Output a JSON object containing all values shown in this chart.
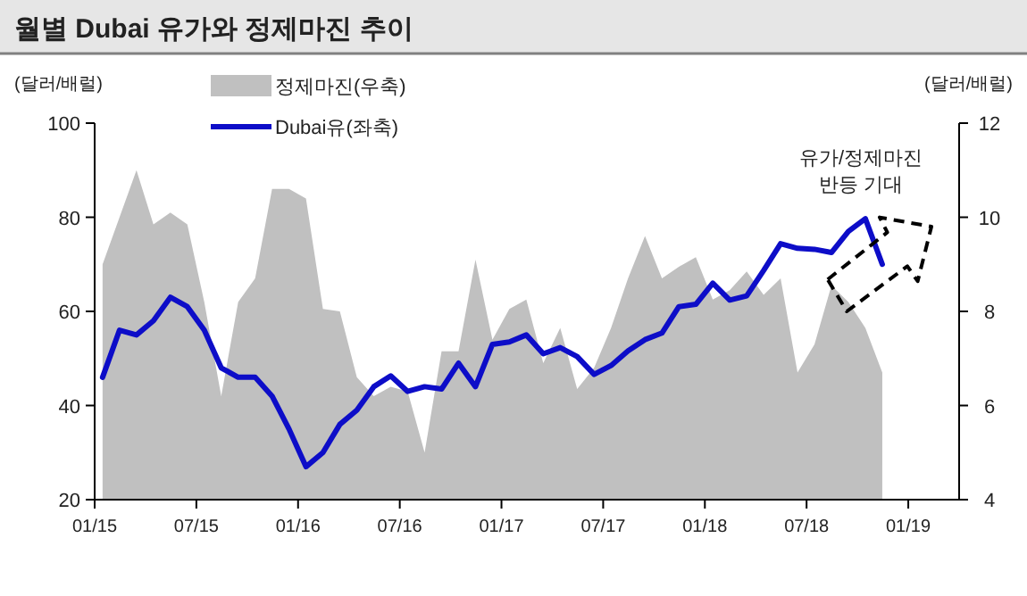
{
  "chart_data": {
    "type": "line",
    "title": "월별 Dubai 유가와 정제마진 추이",
    "ylabel": "(달러/배럴)",
    "y2label": "(달러/배럴)",
    "x": [
      "2015-01-15",
      "2015-02-15",
      "2015-03-15",
      "2015-04-15",
      "2015-05-15",
      "2015-06-15",
      "2015-07-15",
      "2015-08-15",
      "2015-09-15",
      "2015-10-15",
      "2015-11-15",
      "2015-12-15",
      "2016-01-15",
      "2016-02-15",
      "2016-03-15",
      "2016-04-15",
      "2016-05-15",
      "2016-06-15",
      "2016-07-15",
      "2016-08-15",
      "2016-09-15",
      "2016-10-15",
      "2016-11-15",
      "2016-12-15",
      "2017-01-15",
      "2017-02-15",
      "2017-03-15",
      "2017-04-15",
      "2017-05-15",
      "2017-06-15",
      "2017-07-15",
      "2017-08-15",
      "2017-09-15",
      "2017-10-15",
      "2017-11-15",
      "2017-12-15",
      "2018-01-15",
      "2018-02-15",
      "2018-03-15",
      "2018-04-15",
      "2018-05-15",
      "2018-06-15",
      "2018-07-15",
      "2018-08-15",
      "2018-09-15",
      "2018-10-15",
      "2018-11-15"
    ],
    "series": [
      {
        "name": "정제마진(우축)",
        "type": "area",
        "axis": "y2",
        "color": "#c0c0c0",
        "values": [
          9.0,
          10.0,
          11.0,
          9.85,
          10.1,
          9.85,
          8.2,
          6.2,
          8.2,
          8.7,
          10.6,
          10.6,
          10.4,
          8.05,
          8.0,
          6.6,
          6.2,
          6.4,
          6.3,
          5.0,
          7.15,
          7.15,
          9.1,
          7.4,
          8.05,
          8.25,
          6.9,
          7.65,
          6.35,
          6.8,
          7.65,
          8.7,
          9.6,
          8.7,
          8.95,
          9.15,
          8.25,
          8.45,
          8.85,
          8.35,
          8.7,
          6.7,
          7.3,
          8.55,
          8.2,
          7.65,
          6.7
        ]
      },
      {
        "name": "Dubai유(좌축)",
        "color": "#0d0dc8",
        "values": [
          46,
          56,
          55,
          58,
          63,
          61,
          56,
          48,
          46,
          46,
          42,
          35,
          27,
          30,
          36,
          39,
          44,
          46.3,
          43,
          44,
          43.5,
          49,
          44,
          53,
          53.5,
          55,
          51,
          52.3,
          50.4,
          46.6,
          48.5,
          51.6,
          54,
          55.4,
          61,
          61.5,
          66,
          62.4,
          63.3,
          68.7,
          74.4,
          73.4,
          73.2,
          72.5,
          77,
          79.7,
          70
        ]
      }
    ],
    "xlim": [
      "2015-01",
      "2019-04"
    ],
    "xticks": [
      {
        "value": "2015-01",
        "label": "01/15"
      },
      {
        "value": "2015-07",
        "label": "07/15"
      },
      {
        "value": "2016-01",
        "label": "01/16"
      },
      {
        "value": "2016-07",
        "label": "07/16"
      },
      {
        "value": "2017-01",
        "label": "01/17"
      },
      {
        "value": "2017-07",
        "label": "07/17"
      },
      {
        "value": "2018-01",
        "label": "01/18"
      },
      {
        "value": "2018-07",
        "label": "07/18"
      },
      {
        "value": "2019-01",
        "label": "01/19"
      }
    ],
    "ylim": [
      20,
      100
    ],
    "yticks": [
      20,
      40,
      60,
      80,
      100
    ],
    "y2lim": [
      4,
      12
    ],
    "y2ticks": [
      4,
      6,
      8,
      10,
      12
    ],
    "legend": "top left",
    "grid": false,
    "annotations": [
      "유가/정제마진\n반등 기대"
    ]
  }
}
